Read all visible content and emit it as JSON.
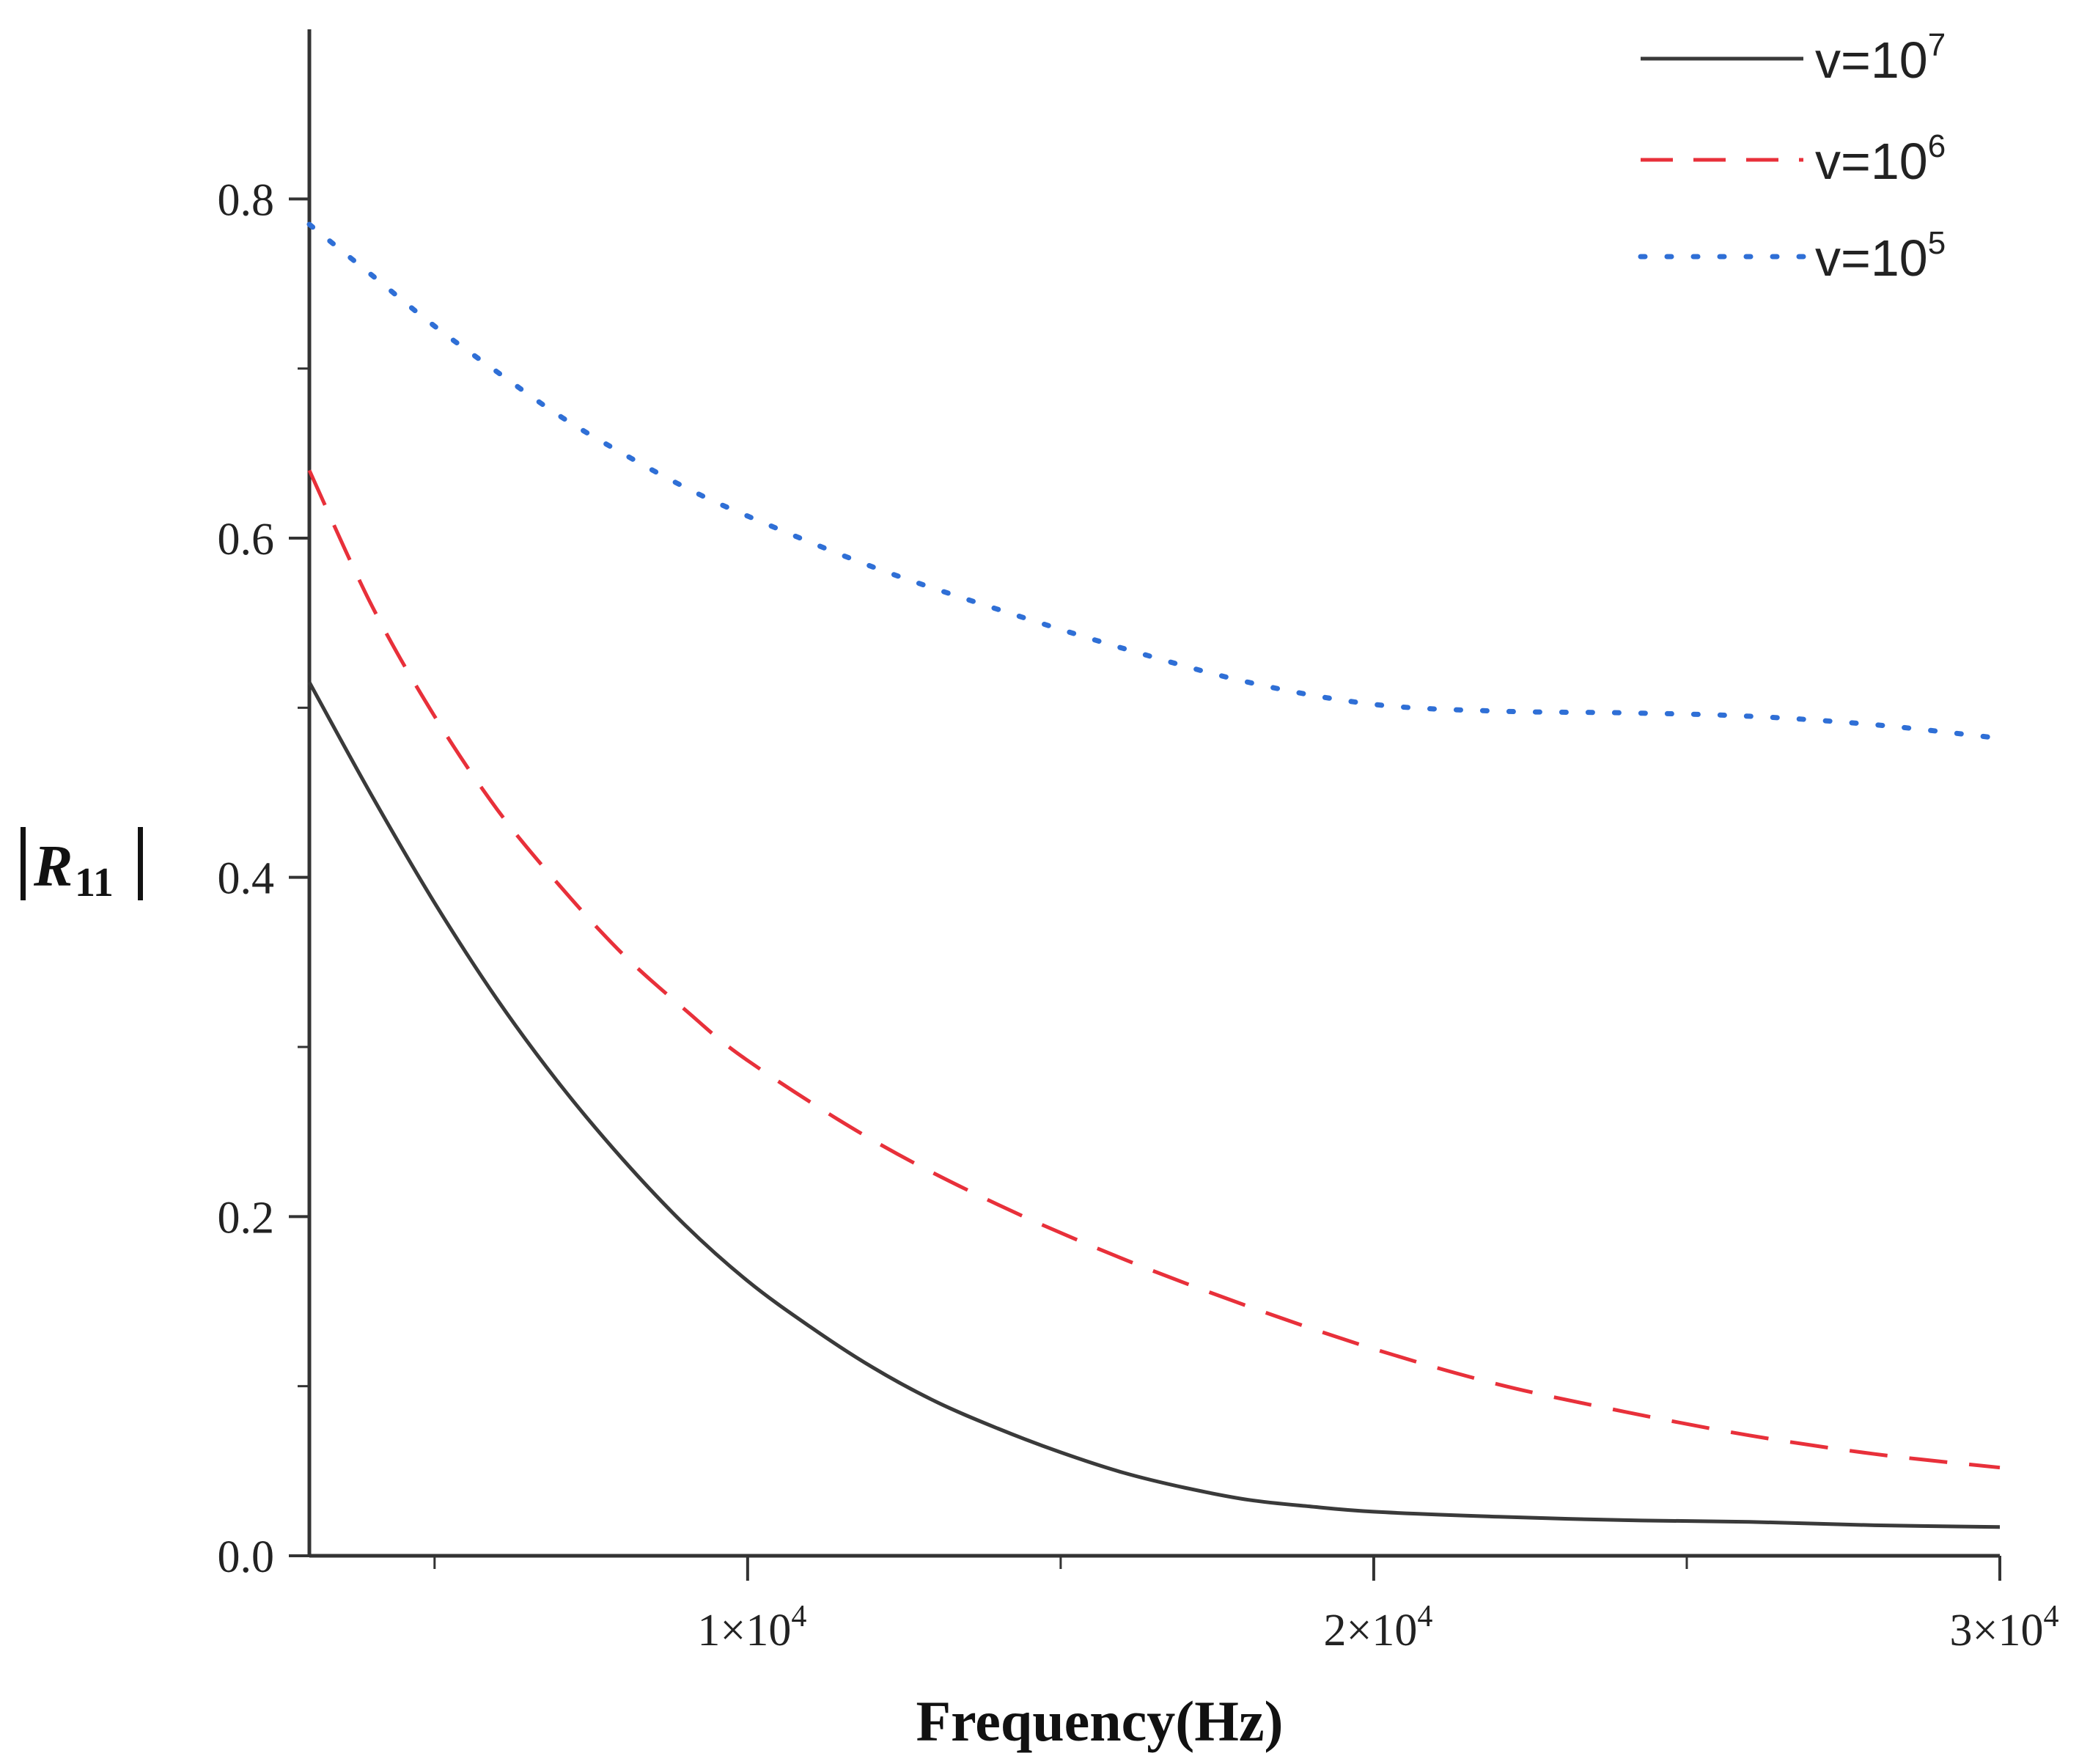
{
  "chart_data": {
    "type": "line",
    "title": "",
    "xlabel": "Frequency(Hz)",
    "ylabel": {
      "main": "R",
      "sub": "11",
      "display": "|R11|"
    },
    "xlim": [
      3000,
      30000
    ],
    "ylim": [
      0,
      0.9
    ],
    "x_ticks": [
      {
        "value": 10000,
        "mantissa": "1×10",
        "exp": "4"
      },
      {
        "value": 20000,
        "mantissa": "2×10",
        "exp": "4"
      },
      {
        "value": 30000,
        "mantissa": "3×10",
        "exp": "4"
      }
    ],
    "y_ticks": [
      {
        "value": 0.0,
        "label": "0.0"
      },
      {
        "value": 0.2,
        "label": "0.2"
      },
      {
        "value": 0.4,
        "label": "0.4"
      },
      {
        "value": 0.6,
        "label": "0.6"
      },
      {
        "value": 0.8,
        "label": "0.8"
      }
    ],
    "x_minor_ticks": [
      5000,
      15000,
      25000
    ],
    "y_minor_ticks": [
      0.1,
      0.3,
      0.5,
      0.7
    ],
    "legend_position": "top-right",
    "series": [
      {
        "name": "v=10^7",
        "legend_base": "v=10",
        "legend_exp": "7",
        "color": "#3a3a3a",
        "style": "solid",
        "x": [
          3000,
          4000,
          5000,
          6000,
          7000,
          8000,
          9000,
          10000,
          11000,
          12000,
          13000,
          14000,
          15000,
          16000,
          17000,
          18000,
          19000,
          20000,
          22000,
          24000,
          26000,
          28000,
          30000
        ],
        "y": [
          0.515,
          0.448,
          0.385,
          0.328,
          0.278,
          0.234,
          0.195,
          0.162,
          0.135,
          0.111,
          0.091,
          0.075,
          0.061,
          0.049,
          0.04,
          0.033,
          0.029,
          0.026,
          0.023,
          0.021,
          0.02,
          0.018,
          0.017
        ]
      },
      {
        "name": "v=10^6",
        "legend_base": "v=10",
        "legend_exp": "6",
        "color": "#e8303a",
        "style": "dashed",
        "x": [
          3000,
          4000,
          5000,
          6000,
          7000,
          8000,
          9000,
          10000,
          12000,
          14000,
          16000,
          18000,
          20000,
          22000,
          24000,
          26000,
          28000,
          30000
        ],
        "y": [
          0.64,
          0.56,
          0.495,
          0.44,
          0.395,
          0.355,
          0.322,
          0.292,
          0.245,
          0.207,
          0.175,
          0.147,
          0.122,
          0.101,
          0.085,
          0.071,
          0.06,
          0.052
        ]
      },
      {
        "name": "v=10^5",
        "legend_base": "v=10",
        "legend_exp": "5",
        "color": "#2f6fd6",
        "style": "dotted",
        "x": [
          3000,
          4000,
          5000,
          6000,
          7000,
          8000,
          9000,
          10000,
          12000,
          14000,
          16000,
          18000,
          20000,
          22000,
          24000,
          26000,
          28000,
          30000
        ],
        "y": [
          0.785,
          0.755,
          0.725,
          0.698,
          0.672,
          0.65,
          0.63,
          0.613,
          0.583,
          0.558,
          0.535,
          0.515,
          0.502,
          0.498,
          0.497,
          0.495,
          0.49,
          0.482
        ]
      }
    ]
  }
}
